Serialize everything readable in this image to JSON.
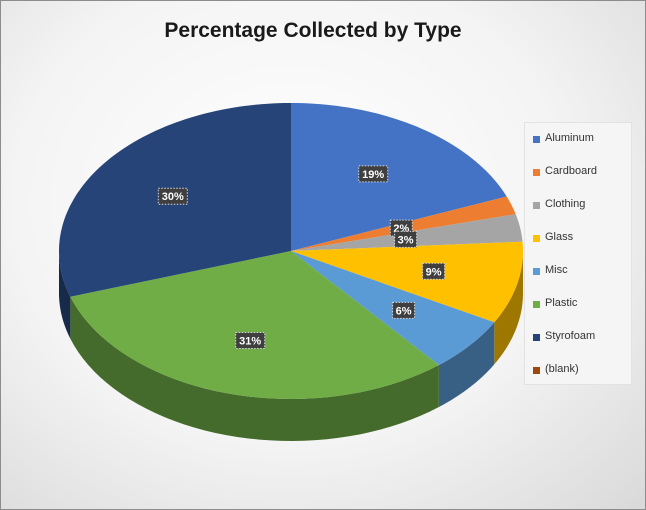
{
  "chart_data": {
    "type": "pie",
    "title": "Percentage Collected by Type",
    "categories": [
      "Aluminum",
      "Cardboard",
      "Clothing",
      "Glass",
      "Misc",
      "Plastic",
      "Styrofoam",
      "(blank)"
    ],
    "values": [
      19,
      2,
      3,
      9,
      6,
      31,
      30,
      0
    ],
    "data_labels": [
      "19%",
      "2%",
      "3%",
      "9%",
      "6%",
      "31%",
      "30%",
      ""
    ],
    "colors": [
      "#4472C4",
      "#ED7D31",
      "#A5A5A5",
      "#FFC000",
      "#5B9BD5",
      "#70AD47",
      "#264478",
      "#9E480E"
    ],
    "legend_position": "right",
    "style": "3d"
  }
}
